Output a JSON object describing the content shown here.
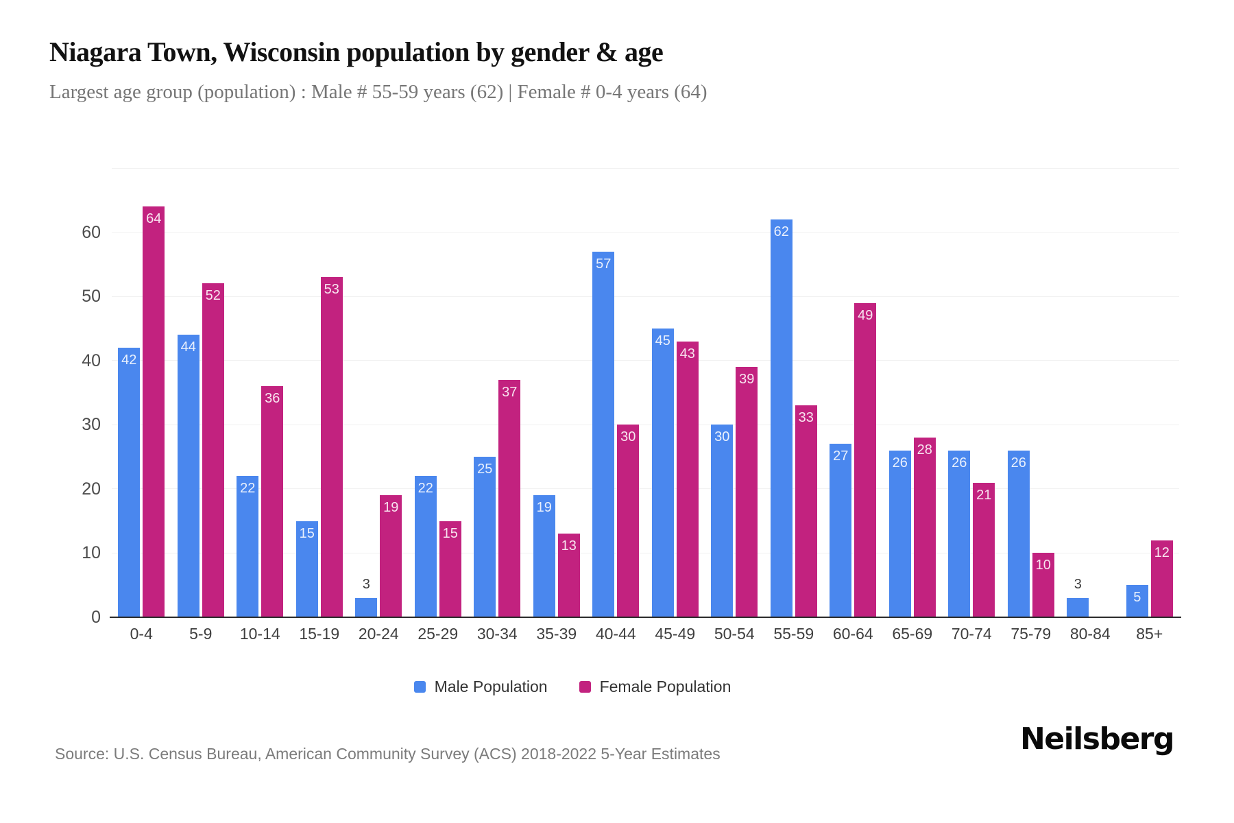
{
  "title": "Niagara Town, Wisconsin population by gender & age",
  "subtitle": "Largest age group (population) : Male # 55-59 years (62) | Female # 0-4 years (64)",
  "source": "Source: U.S. Census Bureau, American Community Survey (ACS) 2018-2022 5-Year Estimates",
  "brand": "Neilsberg",
  "colors": {
    "male_bar": "#4A87EE",
    "female_bar": "#C2227F",
    "gridline": "#F1F1F1",
    "axis_line": "#2B2B2B"
  },
  "chart_data": {
    "type": "bar",
    "title": "Niagara Town, Wisconsin population by gender & age",
    "xlabel": "",
    "ylabel": "",
    "categories": [
      "0-4",
      "5-9",
      "10-14",
      "15-19",
      "20-24",
      "25-29",
      "30-34",
      "35-39",
      "40-44",
      "45-49",
      "50-54",
      "55-59",
      "60-64",
      "65-69",
      "70-74",
      "75-79",
      "80-84",
      "85+"
    ],
    "series": [
      {
        "name": "Male Population",
        "color": "#4A87EE",
        "values": [
          42,
          44,
          22,
          15,
          3,
          22,
          25,
          19,
          57,
          45,
          30,
          62,
          27,
          26,
          26,
          26,
          3,
          5
        ]
      },
      {
        "name": "Female Population",
        "color": "#C2227F",
        "values": [
          64,
          52,
          36,
          53,
          19,
          15,
          37,
          13,
          30,
          43,
          39,
          33,
          49,
          28,
          21,
          10,
          0,
          12
        ]
      }
    ],
    "yticks": [
      0,
      10,
      20,
      30,
      40,
      50,
      60
    ],
    "ylim": [
      0,
      70
    ],
    "grid": true,
    "legend_position": "bottom",
    "bar_value_labels": true
  }
}
